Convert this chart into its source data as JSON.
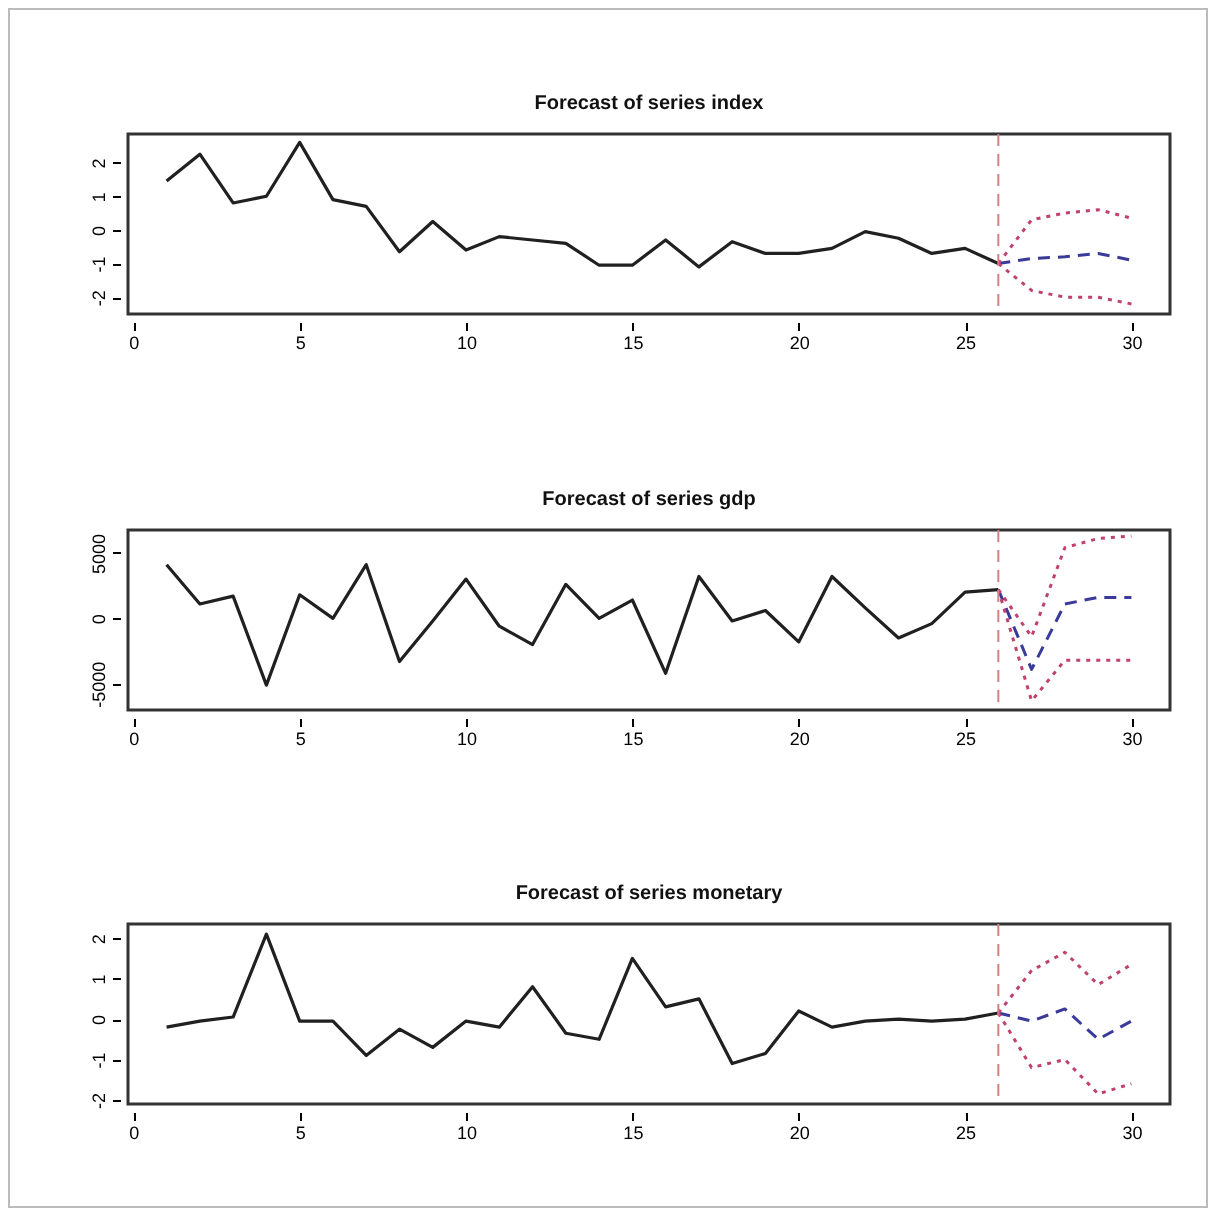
{
  "chart_data": [
    {
      "type": "line",
      "title": "Forecast of series index",
      "xlim": [
        -0.16,
        31.16
      ],
      "xticks": [
        0,
        5,
        10,
        15,
        20,
        25,
        30
      ],
      "ylim": [
        -2.5,
        2.85
      ],
      "yticks": [
        -2,
        -1,
        0,
        1,
        2
      ],
      "grid": false,
      "ref_lines": [
        {
          "axis": "x",
          "value": 26,
          "color": "#d08080",
          "line_style": "dashed"
        }
      ],
      "series": [
        {
          "color": "#202020",
          "line_style": "solid",
          "x": [
            1,
            2,
            3,
            4,
            5,
            6,
            7,
            8,
            9,
            10,
            11,
            12,
            13,
            14,
            15,
            16,
            17,
            18,
            19,
            20,
            21,
            22,
            23,
            24,
            25,
            26
          ],
          "values": [
            1.45,
            2.25,
            0.8,
            1.0,
            2.6,
            0.9,
            0.7,
            -0.65,
            0.25,
            -0.6,
            -0.2,
            -0.3,
            -0.4,
            -1.05,
            -1.05,
            -0.3,
            -1.1,
            -0.35,
            -0.7,
            -0.7,
            -0.55,
            -0.05,
            -0.25,
            -0.7,
            -0.55,
            -1.0
          ]
        },
        {
          "color": "#3a3a9a",
          "line_style": "dashed",
          "x": [
            26,
            27,
            28,
            29,
            30
          ],
          "values": [
            -1.0,
            -0.85,
            -0.8,
            -0.7,
            -0.9
          ]
        },
        {
          "color": "#c04070",
          "line_style": "dotted",
          "x": [
            26,
            27,
            28,
            29,
            30
          ],
          "values": [
            -1.0,
            0.3,
            0.5,
            0.6,
            0.35
          ]
        },
        {
          "color": "#c04070",
          "line_style": "dotted",
          "x": [
            26,
            27,
            28,
            29,
            30
          ],
          "values": [
            -1.0,
            -1.8,
            -2.0,
            -2.0,
            -2.2
          ]
        }
      ]
    },
    {
      "type": "line",
      "title": "Forecast of series gdp",
      "xlim": [
        -0.16,
        31.16
      ],
      "xticks": [
        0,
        5,
        10,
        15,
        20,
        25,
        30
      ],
      "ylim": [
        -7000,
        6750
      ],
      "yticks": [
        -5000,
        0,
        5000
      ],
      "grid": false,
      "ref_lines": [
        {
          "axis": "x",
          "value": 26,
          "color": "#d08080",
          "line_style": "dashed"
        }
      ],
      "series": [
        {
          "color": "#202020",
          "line_style": "solid",
          "x": [
            1,
            2,
            3,
            4,
            5,
            6,
            7,
            8,
            9,
            10,
            11,
            12,
            13,
            14,
            15,
            16,
            17,
            18,
            19,
            20,
            21,
            22,
            23,
            24,
            25,
            26
          ],
          "values": [
            4100,
            1100,
            1700,
            -5100,
            1800,
            0,
            4100,
            -3300,
            -200,
            3000,
            -600,
            -2000,
            2600,
            0,
            1400,
            -4200,
            3200,
            -200,
            600,
            -1800,
            3200,
            800,
            -1500,
            -400,
            2000,
            2200
          ]
        },
        {
          "color": "#3a3a9a",
          "line_style": "dashed",
          "x": [
            26,
            27,
            28,
            29,
            30
          ],
          "values": [
            2200,
            -3900,
            1100,
            1600,
            1600
          ]
        },
        {
          "color": "#c04070",
          "line_style": "dotted",
          "x": [
            26,
            27,
            28,
            29,
            30
          ],
          "values": [
            2200,
            -1400,
            5400,
            6100,
            6300
          ]
        },
        {
          "color": "#c04070",
          "line_style": "dotted",
          "x": [
            26,
            27,
            28,
            29,
            30
          ],
          "values": [
            2200,
            -6300,
            -3200,
            -3200,
            -3200
          ]
        }
      ]
    },
    {
      "type": "line",
      "title": "Forecast of series monetary",
      "xlim": [
        -0.16,
        31.16
      ],
      "xticks": [
        0,
        5,
        10,
        15,
        20,
        25,
        30
      ],
      "ylim": [
        -2.1,
        2.35
      ],
      "yticks": [
        -2,
        -1,
        0,
        1,
        2
      ],
      "grid": false,
      "ref_lines": [
        {
          "axis": "x",
          "value": 26,
          "color": "#d08080",
          "line_style": "dashed"
        }
      ],
      "series": [
        {
          "color": "#202020",
          "line_style": "solid",
          "x": [
            1,
            2,
            3,
            4,
            5,
            6,
            7,
            8,
            9,
            10,
            11,
            12,
            13,
            14,
            15,
            16,
            17,
            18,
            19,
            20,
            21,
            22,
            23,
            24,
            25,
            26
          ],
          "values": [
            -0.2,
            -0.05,
            0.05,
            2.1,
            -0.05,
            -0.05,
            -0.9,
            -0.25,
            -0.7,
            -0.05,
            -0.2,
            0.8,
            -0.35,
            -0.5,
            1.5,
            0.3,
            0.5,
            -1.1,
            -0.85,
            0.2,
            -0.2,
            -0.05,
            0,
            -0.05,
            0,
            0.15
          ]
        },
        {
          "color": "#3a3a9a",
          "line_style": "dashed",
          "x": [
            26,
            27,
            28,
            29,
            30
          ],
          "values": [
            0.15,
            -0.05,
            0.25,
            -0.5,
            -0.05
          ]
        },
        {
          "color": "#c04070",
          "line_style": "dotted",
          "x": [
            26,
            27,
            28,
            29,
            30
          ],
          "values": [
            0.15,
            1.2,
            1.65,
            0.85,
            1.35
          ]
        },
        {
          "color": "#c04070",
          "line_style": "dotted",
          "x": [
            26,
            27,
            28,
            29,
            30
          ],
          "values": [
            0.15,
            -1.2,
            -1.0,
            -1.85,
            -1.6
          ]
        }
      ]
    }
  ]
}
